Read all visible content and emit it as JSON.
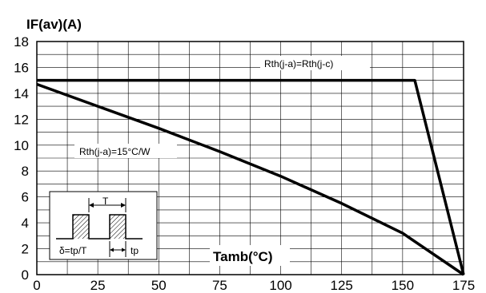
{
  "chart_data": {
    "type": "line",
    "title": "IF(av)(A)",
    "xlabel": "Tamb(°C)",
    "ylabel": "",
    "xlim": [
      0,
      175
    ],
    "ylim": [
      0,
      18
    ],
    "x_ticks": [
      "0",
      "25",
      "50",
      "75",
      "100",
      "125",
      "150",
      "175"
    ],
    "y_ticks": [
      "0",
      "2",
      "4",
      "6",
      "8",
      "10",
      "12",
      "14",
      "16",
      "18"
    ],
    "grid": true,
    "series": [
      {
        "name": "Rth(j-a)=Rth(j-c)",
        "x": [
          0,
          155,
          175
        ],
        "y": [
          15,
          15,
          0
        ]
      },
      {
        "name": "Rth(j-a)=15°C/W",
        "x": [
          0,
          25,
          50,
          75,
          100,
          125,
          150,
          175
        ],
        "y": [
          14.7,
          13.0,
          11.3,
          9.5,
          7.6,
          5.5,
          3.2,
          0
        ]
      }
    ],
    "inset": {
      "period_label": "T",
      "pulse_label": "tp",
      "duty_label": "δ=tp/T"
    }
  }
}
